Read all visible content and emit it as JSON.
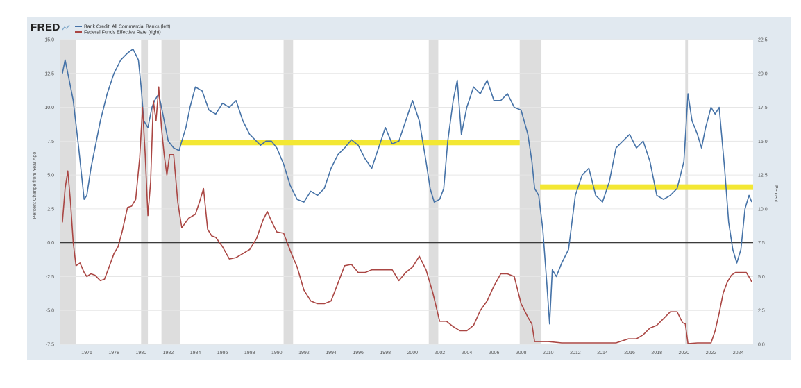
{
  "chart_data": {
    "type": "line",
    "logo": "FRED",
    "legend": [
      {
        "label": "Bank Credit, All Commercial Banks (left)",
        "color": "#4572a7"
      },
      {
        "label": "Federal Funds Effective Rate (right)",
        "color": "#aa4643"
      }
    ],
    "ylabel_left": "Percent Change from Year Ago",
    "ylabel_right": "Percent",
    "xlim": [
      1974.0,
      2025.1
    ],
    "ylim_left": [
      -7.5,
      15.0
    ],
    "ylim_right": [
      0.0,
      22.5
    ],
    "x_ticks": [
      1976,
      1978,
      1980,
      1982,
      1984,
      1986,
      1988,
      1990,
      1992,
      1994,
      1996,
      1998,
      2000,
      2002,
      2004,
      2006,
      2008,
      2010,
      2012,
      2014,
      2016,
      2018,
      2020,
      2022,
      2024
    ],
    "x_tick_labels": [
      "1976",
      "1978",
      "1980",
      "1982",
      "1984",
      "1986",
      "1988",
      "1990",
      "1992",
      "1994",
      "1996",
      "1998",
      "2000",
      "2002",
      "2004",
      "2006",
      "2008",
      "2010",
      "2012",
      "2014",
      "2016",
      "2018",
      "2020",
      "2022",
      "2024"
    ],
    "y_left_ticks": [
      15.0,
      12.5,
      10.0,
      7.5,
      5.0,
      2.5,
      0.0,
      -2.5,
      -5.0,
      -7.5
    ],
    "y_left_tick_labels": [
      "15.0",
      "12.5",
      "10.0",
      "7.5",
      "5.0",
      "2.5",
      "0.0",
      "-2.5",
      "-5.0",
      "-7.5"
    ],
    "y_right_ticks": [
      22.5,
      20.0,
      17.5,
      15.0,
      12.5,
      10.0,
      7.5,
      5.0,
      2.5,
      0.0
    ],
    "y_right_tick_labels": [
      "22.5",
      "20.0",
      "17.5",
      "15.0",
      "12.5",
      "10.0",
      "7.5",
      "5.0",
      "2.5",
      "0.0"
    ],
    "recessions": [
      [
        1973.9,
        1975.2
      ],
      [
        1980.0,
        1980.5
      ],
      [
        1981.5,
        1982.9
      ],
      [
        1990.5,
        1991.2
      ],
      [
        2001.2,
        2001.9
      ],
      [
        2007.9,
        2009.5
      ],
      [
        2020.1,
        2020.3
      ]
    ],
    "zero_line_left": 0.0,
    "highlights": [
      {
        "x": [
          1982.9,
          2007.9
        ],
        "y": 7.4,
        "color": "#f3e733"
      },
      {
        "x": [
          2009.4,
          2025.1
        ],
        "y": 4.1,
        "color": "#f3e733"
      }
    ],
    "series": [
      {
        "name": "Bank Credit, All Commercial Banks (left)",
        "axis": "left",
        "color": "#4572a7",
        "x": [
          1974.2,
          1974.4,
          1974.7,
          1975.0,
          1975.4,
          1975.8,
          1976.0,
          1976.3,
          1976.7,
          1977.0,
          1977.5,
          1978.0,
          1978.5,
          1979.0,
          1979.4,
          1979.8,
          1980.0,
          1980.2,
          1980.5,
          1980.8,
          1981.0,
          1981.3,
          1981.6,
          1982.0,
          1982.4,
          1982.8,
          1983.0,
          1983.3,
          1983.6,
          1984.0,
          1984.5,
          1985.0,
          1985.5,
          1986.0,
          1986.5,
          1987.0,
          1987.5,
          1988.0,
          1988.4,
          1988.8,
          1989.2,
          1989.6,
          1990.0,
          1990.5,
          1991.0,
          1991.5,
          1992.0,
          1992.5,
          1993.0,
          1993.5,
          1994.0,
          1994.5,
          1995.0,
          1995.5,
          1996.0,
          1996.5,
          1997.0,
          1997.5,
          1998.0,
          1998.5,
          1999.0,
          1999.5,
          2000.0,
          2000.5,
          2001.0,
          2001.3,
          2001.6,
          2002.0,
          2002.3,
          2002.6,
          2003.0,
          2003.3,
          2003.6,
          2004.0,
          2004.5,
          2005.0,
          2005.5,
          2006.0,
          2006.5,
          2007.0,
          2007.5,
          2008.0,
          2008.5,
          2008.8,
          2009.0,
          2009.3,
          2009.6,
          2009.9,
          2010.1,
          2010.3,
          2010.6,
          2011.0,
          2011.5,
          2012.0,
          2012.5,
          2013.0,
          2013.5,
          2014.0,
          2014.5,
          2015.0,
          2015.5,
          2016.0,
          2016.5,
          2017.0,
          2017.5,
          2018.0,
          2018.5,
          2019.0,
          2019.5,
          2020.0,
          2020.3,
          2020.6,
          2021.0,
          2021.3,
          2021.6,
          2022.0,
          2022.3,
          2022.6,
          2023.0,
          2023.3,
          2023.6,
          2023.9,
          2024.2,
          2024.5,
          2024.8,
          2025.0
        ],
        "values": [
          12.5,
          13.5,
          12.0,
          10.5,
          7.0,
          3.2,
          3.5,
          5.5,
          7.5,
          9.0,
          11.0,
          12.5,
          13.5,
          14.0,
          14.3,
          13.5,
          11.5,
          9.0,
          8.5,
          10.0,
          10.5,
          11.0,
          9.5,
          7.5,
          7.0,
          6.8,
          7.5,
          8.5,
          10.0,
          11.5,
          11.2,
          9.8,
          9.5,
          10.3,
          10.0,
          10.5,
          9.0,
          8.0,
          7.6,
          7.2,
          7.5,
          7.5,
          7.0,
          5.8,
          4.2,
          3.2,
          3.0,
          3.8,
          3.5,
          4.0,
          5.5,
          6.5,
          7.0,
          7.6,
          7.2,
          6.2,
          5.5,
          7.0,
          8.5,
          7.3,
          7.5,
          9.0,
          10.5,
          9.0,
          6.0,
          4.0,
          3.0,
          3.2,
          4.0,
          7.5,
          10.5,
          12.0,
          8.0,
          10.0,
          11.5,
          11.0,
          12.0,
          10.5,
          10.5,
          11.0,
          10.0,
          9.8,
          8.0,
          6.0,
          4.0,
          3.5,
          1.0,
          -3.0,
          -6.0,
          -2.0,
          -2.5,
          -1.5,
          -0.5,
          3.5,
          5.0,
          5.5,
          3.5,
          3.0,
          4.5,
          7.0,
          7.5,
          8.0,
          7.0,
          7.5,
          6.0,
          3.5,
          3.2,
          3.5,
          4.0,
          6.0,
          11.0,
          9.0,
          8.0,
          7.0,
          8.5,
          10.0,
          9.5,
          10.0,
          5.5,
          1.5,
          -0.5,
          -1.5,
          -0.5,
          2.5,
          3.5,
          3.0
        ]
      },
      {
        "name": "Federal Funds Effective Rate (right)",
        "axis": "right",
        "color": "#aa4643",
        "x": [
          1974.2,
          1974.4,
          1974.6,
          1974.8,
          1975.0,
          1975.2,
          1975.5,
          1975.8,
          1976.0,
          1976.3,
          1976.6,
          1977.0,
          1977.3,
          1977.6,
          1978.0,
          1978.3,
          1978.6,
          1979.0,
          1979.3,
          1979.6,
          1979.9,
          1980.1,
          1980.3,
          1980.5,
          1980.7,
          1980.9,
          1981.1,
          1981.3,
          1981.5,
          1981.7,
          1981.9,
          1982.1,
          1982.4,
          1982.7,
          1983.0,
          1983.5,
          1984.0,
          1984.3,
          1984.6,
          1984.9,
          1985.2,
          1985.5,
          1986.0,
          1986.5,
          1987.0,
          1987.5,
          1988.0,
          1988.5,
          1989.0,
          1989.3,
          1989.6,
          1990.0,
          1990.5,
          1991.0,
          1991.5,
          1992.0,
          1992.5,
          1993.0,
          1993.5,
          1994.0,
          1994.5,
          1995.0,
          1995.5,
          1996.0,
          1996.5,
          1997.0,
          1997.5,
          1998.0,
          1998.5,
          1999.0,
          1999.5,
          2000.0,
          2000.5,
          2001.0,
          2001.5,
          2002.0,
          2002.5,
          2003.0,
          2003.5,
          2004.0,
          2004.5,
          2005.0,
          2005.5,
          2006.0,
          2006.5,
          2007.0,
          2007.5,
          2008.0,
          2008.5,
          2008.8,
          2009.0,
          2010.0,
          2011.0,
          2012.0,
          2013.0,
          2014.0,
          2015.0,
          2015.9,
          2016.5,
          2017.0,
          2017.5,
          2018.0,
          2018.5,
          2019.0,
          2019.5,
          2019.9,
          2020.1,
          2020.3,
          2021.0,
          2022.0,
          2022.3,
          2022.6,
          2022.9,
          2023.2,
          2023.5,
          2023.8,
          2024.0,
          2024.3,
          2024.6,
          2024.9,
          2025.0
        ],
        "values": [
          9.0,
          11.5,
          12.8,
          10.5,
          7.5,
          5.8,
          6.0,
          5.3,
          5.0,
          5.2,
          5.1,
          4.7,
          4.8,
          5.6,
          6.7,
          7.2,
          8.3,
          10.1,
          10.2,
          10.7,
          13.8,
          17.5,
          14.0,
          9.5,
          12.0,
          18.0,
          16.5,
          19.0,
          16.0,
          14.0,
          12.5,
          14.0,
          14.0,
          10.5,
          8.6,
          9.3,
          9.6,
          10.5,
          11.5,
          8.5,
          8.0,
          7.9,
          7.2,
          6.3,
          6.4,
          6.7,
          7.0,
          7.8,
          9.2,
          9.8,
          9.1,
          8.3,
          8.2,
          6.9,
          5.7,
          4.0,
          3.2,
          3.0,
          3.0,
          3.2,
          4.5,
          5.8,
          5.9,
          5.3,
          5.3,
          5.5,
          5.5,
          5.5,
          5.5,
          4.7,
          5.3,
          5.7,
          6.5,
          5.5,
          3.8,
          1.7,
          1.7,
          1.3,
          1.0,
          1.0,
          1.4,
          2.5,
          3.2,
          4.3,
          5.2,
          5.2,
          5.0,
          3.0,
          2.0,
          1.5,
          0.2,
          0.2,
          0.1,
          0.1,
          0.1,
          0.1,
          0.1,
          0.4,
          0.4,
          0.7,
          1.2,
          1.4,
          1.9,
          2.4,
          2.4,
          1.6,
          1.5,
          0.05,
          0.1,
          0.1,
          1.0,
          2.3,
          3.8,
          4.6,
          5.1,
          5.3,
          5.3,
          5.3,
          5.3,
          4.8,
          4.6
        ]
      }
    ]
  }
}
